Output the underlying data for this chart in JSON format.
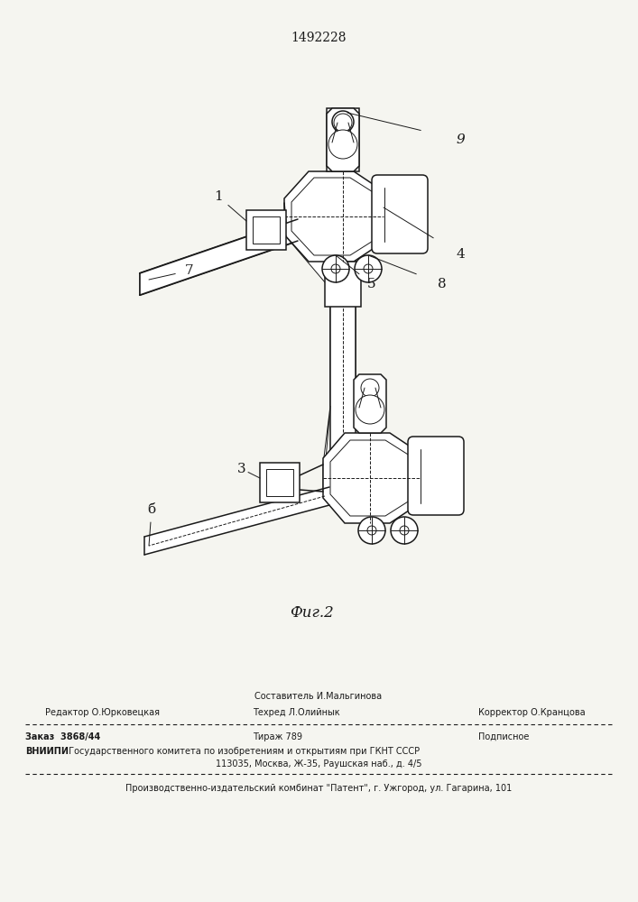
{
  "patent_number": "1492228",
  "fig_label": "Фиг.2",
  "background_color": "#f5f5f0",
  "line_color": "#1a1a1a",
  "page_width": 7.07,
  "page_height": 10.0,
  "footer": {
    "sestavitel_label": "Составитель И.Мальгинова",
    "redaktor_label": "Редактор О.Юрковецкая",
    "tekhred_label": "Техред Л.Олийнык",
    "korrektor_label": "Корректор О.Кранцова",
    "zakaz_label": "Заказ  3868/44",
    "tirazh_label": "Тираж 789",
    "podpisnoe_label": "Подписное",
    "vniiipi_line1": "ВНИИПИ Государственного комитета по изобретениям и открытиям при ГКНТ СССР",
    "vniiipi_line2": "113035, Москва, Ж-35, Раушская наб., д. 4/5",
    "proizv_line": "Производственно-издательский комбинат \"Патент\", г. Ужгород, ул. Гагарина, 101"
  }
}
